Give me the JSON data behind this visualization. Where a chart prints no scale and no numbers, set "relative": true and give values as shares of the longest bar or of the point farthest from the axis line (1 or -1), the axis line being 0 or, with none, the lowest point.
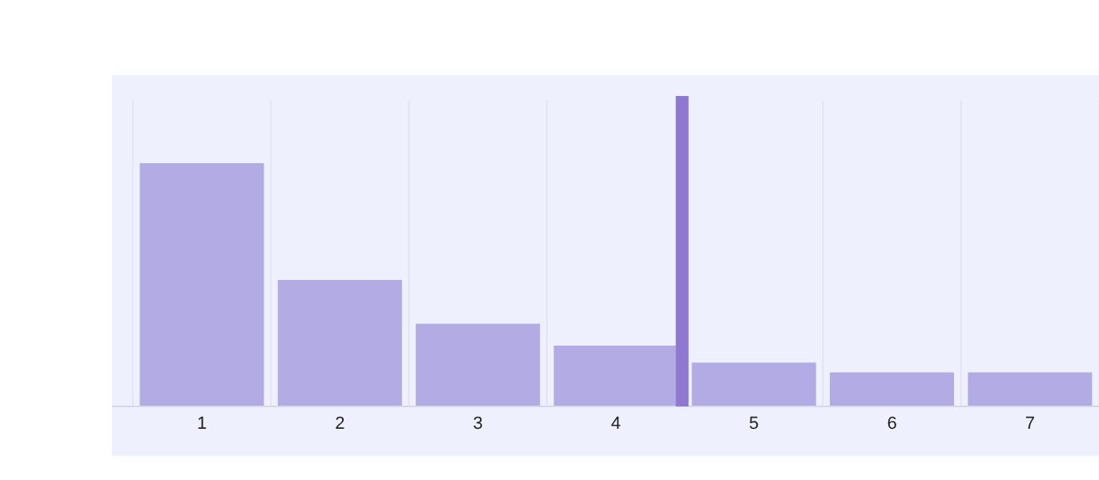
{
  "chart_data": {
    "type": "bar",
    "relative": true,
    "x": [
      1,
      2,
      3,
      4,
      5,
      6,
      7
    ],
    "values": [
      1,
      0.52,
      0.34,
      0.25,
      0.18,
      0.14,
      0.14
    ],
    "color": "#b3abe3",
    "xlim": [
      0.35,
      7.5
    ],
    "xticks": [
      {
        "value": 0.5,
        "label": null
      },
      1,
      {
        "value": 1.5,
        "label": null
      },
      2,
      {
        "value": 2.5,
        "label": null
      },
      3,
      {
        "value": 3.5,
        "label": null
      },
      4,
      {
        "value": 4.5,
        "label": null
      },
      5,
      {
        "value": 5.5,
        "label": null
      },
      6,
      {
        "value": 6.5,
        "label": null
      },
      7,
      {
        "value": 7.5,
        "label": null
      }
    ],
    "grid": "x",
    "ref_lines": [
      {
        "axis": "x",
        "value": 4.48,
        "color": "#8f78d0"
      }
    ]
  }
}
